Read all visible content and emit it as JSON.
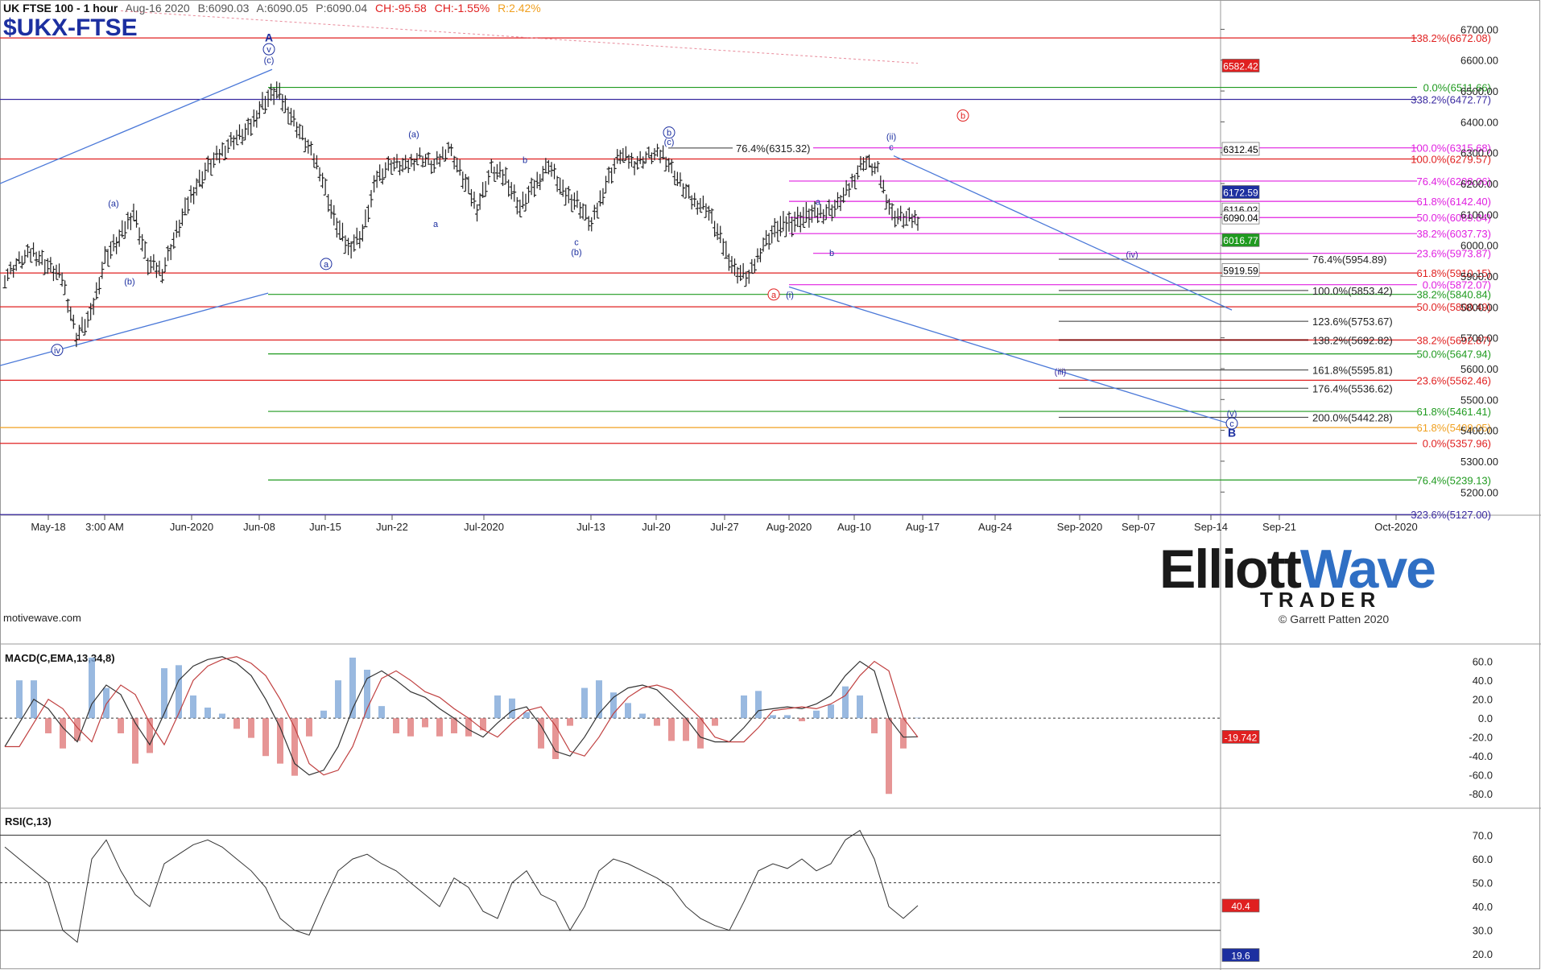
{
  "header": {
    "instrument": "UK FTSE 100 - 1 hour",
    "date": "Aug-16 2020",
    "bid": "B:6090.03",
    "ask": "A:6090.05",
    "price": "P:6090.04",
    "change": "CH:-95.58",
    "change_pct": "CH:-1.55%",
    "range": "R:2.42%",
    "ticker": "$UKX-FTSE",
    "platform": "motivewave.com"
  },
  "logo": {
    "line1a": "Elliott",
    "line1b": "Wave",
    "line2": "TRADER",
    "copyright": "© Garrett Patten 2020"
  },
  "colors": {
    "red": "#e02020",
    "green": "#1f9a1f",
    "magenta": "#e020e0",
    "purple": "#3a2aa0",
    "blue": "#1c2fa0",
    "orange": "#f0a020",
    "bar": "#202020"
  },
  "chart_data": {
    "type": "ohlc",
    "title": "UK FTSE 100 - 1 hour",
    "y_axis": {
      "ticks": [
        5200,
        5300,
        5400,
        5500,
        5600,
        5700,
        5800,
        5900,
        6000,
        6100,
        6200,
        6300,
        6400,
        6500,
        6600,
        6700
      ],
      "ylim": [
        5125,
        6795
      ]
    },
    "x_axis": {
      "labels": [
        "May-18",
        "3:00 AM",
        "Jun-2020",
        "Jun-08",
        "Jun-15",
        "Jun-22",
        "Jul-2020",
        "Jul-13",
        "Jul-20",
        "Jul-27",
        "Aug-2020",
        "Aug-10",
        "Aug-17",
        "Aug-24",
        "Sep-2020",
        "Sep-07",
        "Sep-14",
        "Sep-21",
        "Oct-2020"
      ]
    },
    "price_path": [
      [
        5885,
        5910
      ],
      [
        5935,
        5960
      ],
      [
        5965,
        5995
      ],
      [
        5915,
        5950
      ],
      [
        5880,
        5910
      ],
      [
        5690,
        5720
      ],
      [
        5750,
        5790
      ],
      [
        5940,
        5980
      ],
      [
        6000,
        6040
      ],
      [
        6090,
        6130
      ],
      [
        5920,
        5960
      ],
      [
        5900,
        5930
      ],
      [
        6020,
        6060
      ],
      [
        6140,
        6180
      ],
      [
        6220,
        6260
      ],
      [
        6280,
        6310
      ],
      [
        6330,
        6360
      ],
      [
        6350,
        6390
      ],
      [
        6440,
        6480
      ],
      [
        6480,
        6520
      ],
      [
        6400,
        6440
      ],
      [
        6320,
        6350
      ],
      [
        6230,
        6260
      ],
      [
        6060,
        6110
      ],
      [
        5970,
        6010
      ],
      [
        6020,
        6060
      ],
      [
        6200,
        6240
      ],
      [
        6250,
        6280
      ],
      [
        6240,
        6270
      ],
      [
        6280,
        6300
      ],
      [
        6240,
        6270
      ],
      [
        6310,
        6330
      ],
      [
        6200,
        6240
      ],
      [
        6100,
        6140
      ],
      [
        6230,
        6260
      ],
      [
        6200,
        6240
      ],
      [
        6100,
        6140
      ],
      [
        6170,
        6210
      ],
      [
        6250,
        6280
      ],
      [
        6150,
        6190
      ],
      [
        6120,
        6160
      ],
      [
        6050,
        6080
      ],
      [
        6180,
        6220
      ],
      [
        6280,
        6310
      ],
      [
        6250,
        6280
      ],
      [
        6280,
        6300
      ],
      [
        6280,
        6310
      ],
      [
        6200,
        6230
      ],
      [
        6130,
        6160
      ],
      [
        6110,
        6140
      ],
      [
        6000,
        6040
      ],
      [
        5900,
        5940
      ],
      [
        5880,
        5910
      ],
      [
        5990,
        6020
      ],
      [
        6030,
        6080
      ],
      [
        6050,
        6100
      ],
      [
        6070,
        6120
      ],
      [
        6090,
        6120
      ],
      [
        6100,
        6140
      ],
      [
        6170,
        6200
      ],
      [
        6260,
        6290
      ],
      [
        6230,
        6250
      ],
      [
        6080,
        6120
      ],
      [
        6070,
        6100
      ]
    ],
    "price_labels": [
      {
        "text": "6582.42",
        "value": 6582.42,
        "bg": "#e02020",
        "fg": "#ffffff"
      },
      {
        "text": "6312.45",
        "value": 6312.45,
        "bg": "#ffffff",
        "fg": "#000000"
      },
      {
        "text": "6172.59",
        "value": 6172.59,
        "bg": "#1c2fa0",
        "fg": "#ffffff"
      },
      {
        "text": "6116.02",
        "value": 6116.02,
        "bg": "#ffffff",
        "fg": "#000000"
      },
      {
        "text": "6090.04",
        "value": 6090.04,
        "bg": "#ffffff",
        "fg": "#000000"
      },
      {
        "text": "6016.77",
        "value": 6016.77,
        "bg": "#1f9a1f",
        "fg": "#ffffff"
      },
      {
        "text": "5919.59",
        "value": 5919.59,
        "bg": "#ffffff",
        "fg": "#000000"
      }
    ],
    "fib_levels": [
      {
        "text": "138.2%(6672.08)",
        "value": 6672.08,
        "color": "#e02020"
      },
      {
        "text": "0.0%(6511.66)",
        "value": 6511.66,
        "color": "#1f9a1f"
      },
      {
        "text": "338.2%(6472.77)",
        "value": 6472.77,
        "color": "#3a2aa0"
      },
      {
        "text": "100.0%(6315.68)",
        "value": 6315.68,
        "color": "#e020e0"
      },
      {
        "text": "100.0%(6279.57)",
        "value": 6279.57,
        "color": "#e02020"
      },
      {
        "text": "76.4%(6208.06)",
        "value": 6208.06,
        "color": "#e020e0"
      },
      {
        "text": "61.8%(6142.40)",
        "value": 6142.4,
        "color": "#e020e0"
      },
      {
        "text": "50.0%(6089.84)",
        "value": 6089.84,
        "color": "#e020e0"
      },
      {
        "text": "38.2%(6037.73)",
        "value": 6037.73,
        "color": "#e020e0"
      },
      {
        "text": "23.6%(5973.87)",
        "value": 5973.87,
        "color": "#e020e0"
      },
      {
        "text": "61.8%(5910.15)",
        "value": 5910.15,
        "color": "#e02020"
      },
      {
        "text": "0.0%(5872.07)",
        "value": 5872.07,
        "color": "#e020e0"
      },
      {
        "text": "38.2%(5840.84)",
        "value": 5840.84,
        "color": "#1f9a1f"
      },
      {
        "text": "50.0%(5800.49)",
        "value": 5800.49,
        "color": "#e02020"
      },
      {
        "text": "38.2%(5692.87)",
        "value": 5692.87,
        "color": "#e02020"
      },
      {
        "text": "50.0%(5647.94)",
        "value": 5647.94,
        "color": "#1f9a1f"
      },
      {
        "text": "23.6%(5562.46)",
        "value": 5562.46,
        "color": "#e02020"
      },
      {
        "text": "61.8%(5461.41)",
        "value": 5461.41,
        "color": "#1f9a1f"
      },
      {
        "text": "61.8%(5409.05)",
        "value": 5409.05,
        "color": "#f0a020"
      },
      {
        "text": "0.0%(5357.96)",
        "value": 5357.96,
        "color": "#e02020"
      },
      {
        "text": "76.4%(5239.13)",
        "value": 5239.13,
        "color": "#1f9a1f"
      },
      {
        "text": "323.6%(5127.00)",
        "value": 5127.0,
        "color": "#3a2aa0"
      }
    ],
    "projection_levels": [
      {
        "text": "76.4%(6315.32)",
        "value": 6315.32
      },
      {
        "text": "76.4%(5954.89)",
        "value": 5954.89
      },
      {
        "text": "100.0%(5853.42)",
        "value": 5853.42
      },
      {
        "text": "123.6%(5753.67)",
        "value": 5753.67
      },
      {
        "text": "138.2%(5692.82)",
        "value": 5692.82
      },
      {
        "text": "161.8%(5595.81)",
        "value": 5595.81
      },
      {
        "text": "176.4%(5536.62)",
        "value": 5536.62
      },
      {
        "text": "200.0%(5442.28)",
        "value": 5442.28
      }
    ],
    "wave_labels": [
      {
        "text": "A",
        "value": 6660,
        "color": "#1c2fa0",
        "bold": true
      },
      {
        "text": "v",
        "value": 6625,
        "color": "#1c2fa0",
        "circle": true
      },
      {
        "text": "(c)",
        "value": 6590,
        "color": "#1c2fa0"
      },
      {
        "text": "(a)",
        "value": 6350,
        "color": "#1c2fa0"
      },
      {
        "text": "b",
        "value": 6267,
        "color": "#1c2fa0"
      },
      {
        "text": "b",
        "value": 6355,
        "color": "#1c2fa0",
        "circle": true
      },
      {
        "text": "(c)",
        "value": 6325,
        "color": "#1c2fa0"
      },
      {
        "text": "(ii)",
        "value": 6342,
        "color": "#1c2fa0"
      },
      {
        "text": "c",
        "value": 6308,
        "color": "#1c2fa0"
      },
      {
        "text": "b",
        "value": 6410,
        "color": "#e02020",
        "circle": true
      },
      {
        "text": "(a)",
        "value": 6126,
        "color": "#1c2fa0"
      },
      {
        "text": "a",
        "value": 6059,
        "color": "#1c2fa0"
      },
      {
        "text": "a",
        "value": 6131,
        "color": "#1c2fa0"
      },
      {
        "text": "c",
        "value": 6000,
        "color": "#1c2fa0"
      },
      {
        "text": "(b)",
        "value": 5968,
        "color": "#1c2fa0"
      },
      {
        "text": "a",
        "value": 5929,
        "color": "#1c2fa0",
        "circle": true
      },
      {
        "text": "(b)",
        "value": 5872,
        "color": "#1c2fa0"
      },
      {
        "text": "b",
        "value": 5965,
        "color": "#1c2fa0"
      },
      {
        "text": "a",
        "value": 5830,
        "color": "#e02020",
        "circle": true
      },
      {
        "text": "(i)",
        "value": 5830,
        "color": "#1c2fa0"
      },
      {
        "text": "iv",
        "value": 5650,
        "color": "#1c2fa0",
        "circle": true
      },
      {
        "text": "(iv)",
        "value": 5960,
        "color": "#3a2aa0"
      },
      {
        "text": "(iii)",
        "value": 5580,
        "color": "#3a2aa0"
      },
      {
        "text": "(v)",
        "value": 5445,
        "color": "#1c2fa0"
      },
      {
        "text": "c",
        "value": 5412,
        "color": "#1c2fa0",
        "circle": true
      },
      {
        "text": "B",
        "value": 5380,
        "color": "#1c2fa0",
        "bold": true
      }
    ]
  },
  "macd": {
    "title": "MACD(C,EMA,13,34,8)",
    "ticks": [
      "60.0",
      "40.0",
      "20.0",
      "0.0",
      "-20.0",
      "-40.0",
      "-60.0",
      "-80.0"
    ],
    "current": "-19.742",
    "series": [
      -30,
      -5,
      20,
      10,
      -10,
      -25,
      15,
      35,
      25,
      -5,
      -28,
      5,
      40,
      55,
      62,
      65,
      58,
      45,
      20,
      -10,
      -48,
      -60,
      -55,
      -30,
      10,
      42,
      50,
      40,
      28,
      22,
      10,
      0,
      -12,
      -20,
      -5,
      8,
      12,
      -8,
      -35,
      -40,
      -20,
      5,
      22,
      32,
      35,
      30,
      15,
      0,
      -20,
      -25,
      -25,
      -10,
      8,
      10,
      12,
      10,
      15,
      24,
      45,
      60,
      50,
      0,
      -20,
      -19.7
    ]
  },
  "rsi": {
    "title": "RSI(C,13)",
    "ticks": [
      "70.0",
      "60.0",
      "50.0",
      "40.0",
      "30.0",
      "20.0"
    ],
    "current_upper": "40.4",
    "current_lower": "19.6",
    "series": [
      65,
      60,
      55,
      50,
      30,
      25,
      60,
      68,
      55,
      45,
      40,
      58,
      62,
      66,
      68,
      65,
      60,
      55,
      48,
      35,
      30,
      28,
      42,
      55,
      60,
      62,
      58,
      55,
      50,
      45,
      40,
      52,
      48,
      38,
      35,
      50,
      55,
      45,
      42,
      30,
      40,
      55,
      60,
      58,
      55,
      52,
      48,
      40,
      35,
      32,
      30,
      42,
      55,
      58,
      56,
      60,
      55,
      58,
      68,
      72,
      60,
      40,
      35,
      40.4
    ]
  }
}
